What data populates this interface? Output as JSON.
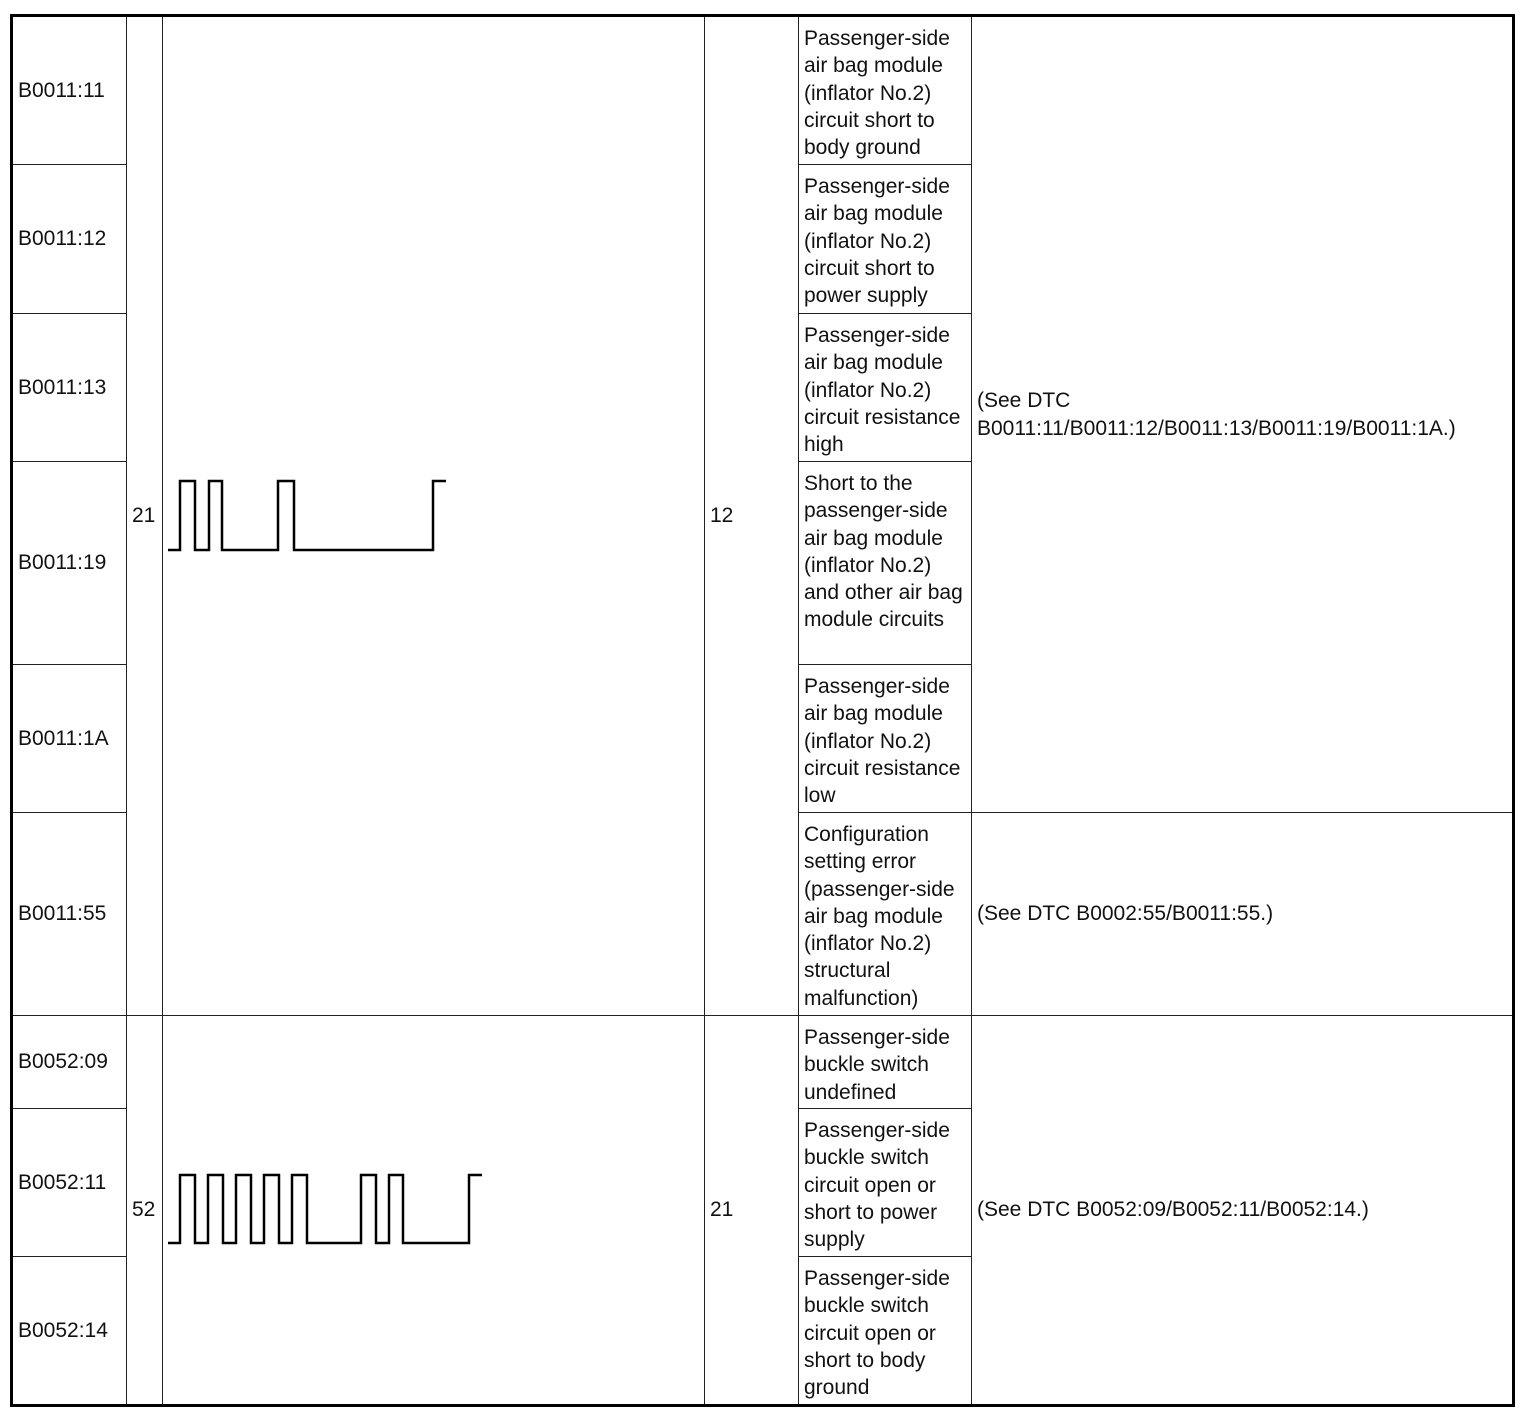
{
  "groups": [
    {
      "blink_code": "21",
      "display_code": "12",
      "rows": [
        {
          "dtc": "B0011:11",
          "description": "Passenger-side air bag module (inflator No.2) circuit short to body ground"
        },
        {
          "dtc": "B0011:12",
          "description": "Passenger-side air bag module (inflator No.2) circuit short to power supply"
        },
        {
          "dtc": "B0011:13",
          "description": "Passenger-side air bag module (inflator No.2) circuit resistance high"
        },
        {
          "dtc": "B0011:19",
          "description": "Short to the passenger-side air bag module (inflator No.2) and other air bag module circuits"
        },
        {
          "dtc": "B0011:1A",
          "description": "Passenger-side air bag module (inflator No.2) circuit resistance low"
        },
        {
          "dtc": "B0011:55",
          "description": "Configuration setting error (passenger-side air bag module (inflator No.2) structural malfunction)"
        }
      ],
      "references": [
        "(See DTC\nB0011:11/B0011:12/B0011:13/B0011:19/B0011:1A.)",
        "(See DTC B0002:55/B0011:55.)"
      ]
    },
    {
      "blink_code": "52",
      "display_code": "21",
      "rows": [
        {
          "dtc": "B0052:09",
          "description": "Passenger-side buckle switch undefined"
        },
        {
          "dtc": "B0052:11",
          "description": "Passenger-side buckle switch circuit open or short to power supply"
        },
        {
          "dtc": "B0052:14",
          "description": "Passenger-side buckle switch circuit open or short to body ground"
        }
      ],
      "references": [
        "(See DTC B0052:09/B0052:11/B0052:14.)"
      ]
    }
  ]
}
